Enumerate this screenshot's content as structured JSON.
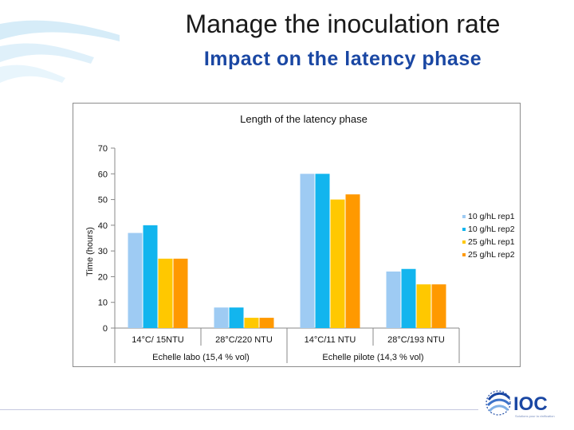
{
  "slide": {
    "title": "Manage the inoculation rate",
    "subtitle": "Impact on the latency phase",
    "logo_text": "IOC",
    "logo_tagline": "Solutions pour la vinification"
  },
  "colors": {
    "subtitle": "#1a47a3",
    "swoosh": "#cfe7f5",
    "logo": "#1a47a3"
  },
  "chart_data": {
    "type": "bar",
    "title": "Length of the latency phase",
    "xlabel": "",
    "ylabel": "Time (hours)",
    "ylim": [
      0,
      70
    ],
    "yticks": [
      0,
      10,
      20,
      30,
      40,
      50,
      60,
      70
    ],
    "categories": [
      "14°C/ 15NTU",
      "28°C/220 NTU",
      "14°C/11 NTU",
      "28°C/193 NTU"
    ],
    "groups": [
      {
        "label": "Echelle labo (15,4 % vol)",
        "span": [
          0,
          1
        ]
      },
      {
        "label": "Echelle pilote (14,3 % vol)",
        "span": [
          2,
          3
        ]
      }
    ],
    "series": [
      {
        "name": "10 g/hL rep1",
        "color": "#9ecbf3",
        "values": [
          37,
          8,
          60,
          22
        ]
      },
      {
        "name": "10 g/hL rep2",
        "color": "#12b5ee",
        "values": [
          40,
          8,
          60,
          23
        ]
      },
      {
        "name": "25 g/hL rep1",
        "color": "#ffc800",
        "values": [
          27,
          4,
          50,
          17
        ]
      },
      {
        "name": "25 g/hL rep2",
        "color": "#ff9900",
        "values": [
          27,
          4,
          52,
          17
        ]
      }
    ],
    "legend_position": "right",
    "grid": false
  }
}
